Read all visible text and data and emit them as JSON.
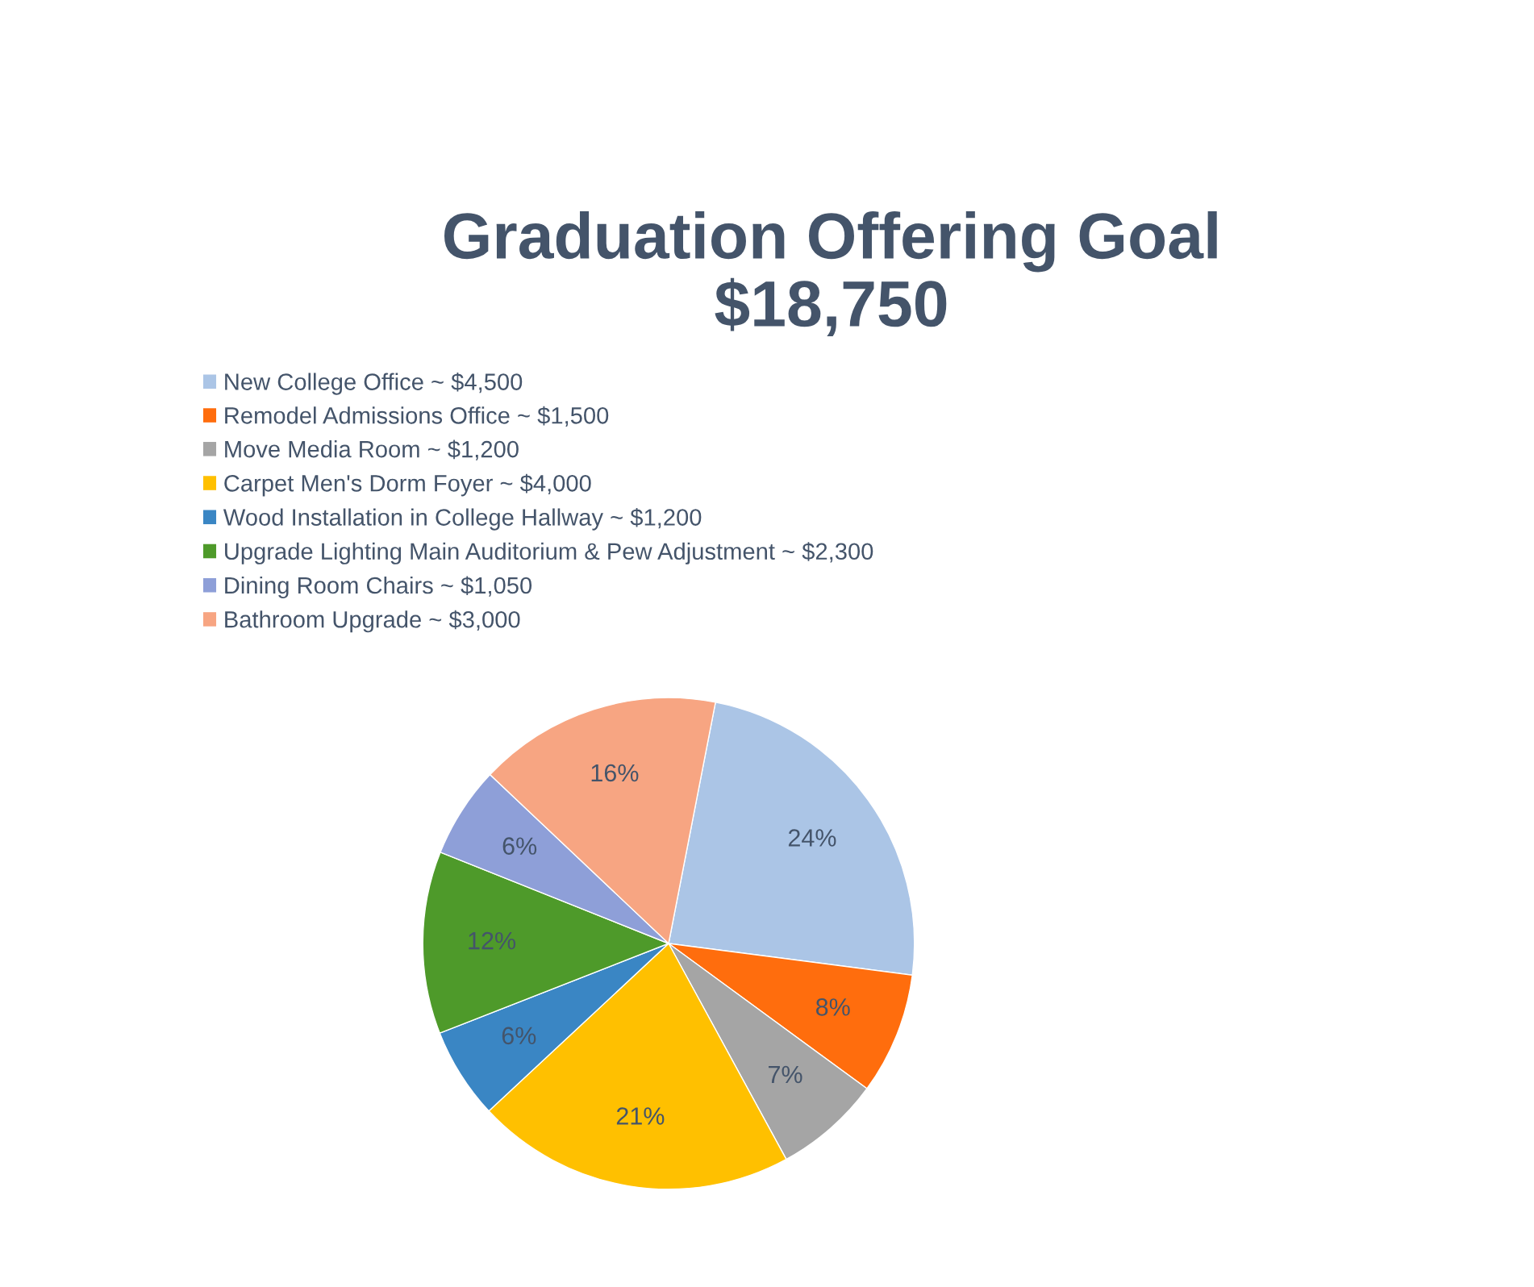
{
  "chart_data": {
    "type": "pie",
    "title": "Graduation Offering Goal\n$18,750",
    "categories": [
      "New College Office ~ $4,500",
      "Remodel Admissions Office ~ $1,500",
      "Move Media Room ~ $1,200",
      "Carpet Men's Dorm Foyer ~ $4,000",
      "Wood Installation in College Hallway ~ $1,200",
      "Upgrade Lighting Main Auditorium & Pew Adjustment ~ $2,300",
      "Dining Room Chairs ~ $1,050",
      "Bathroom Upgrade ~ $3,000"
    ],
    "values": [
      24,
      8,
      7,
      21,
      6,
      12,
      6,
      16
    ],
    "value_labels": [
      "24%",
      "8%",
      "7%",
      "21%",
      "6%",
      "12%",
      "6%",
      "16%"
    ],
    "colors": [
      "#abc5e6",
      "#ff6d0d",
      "#a5a5a5",
      "#ffc000",
      "#3a86c4",
      "#4e9a2a",
      "#8e9fd8",
      "#f7a582"
    ],
    "legend": "top left"
  }
}
